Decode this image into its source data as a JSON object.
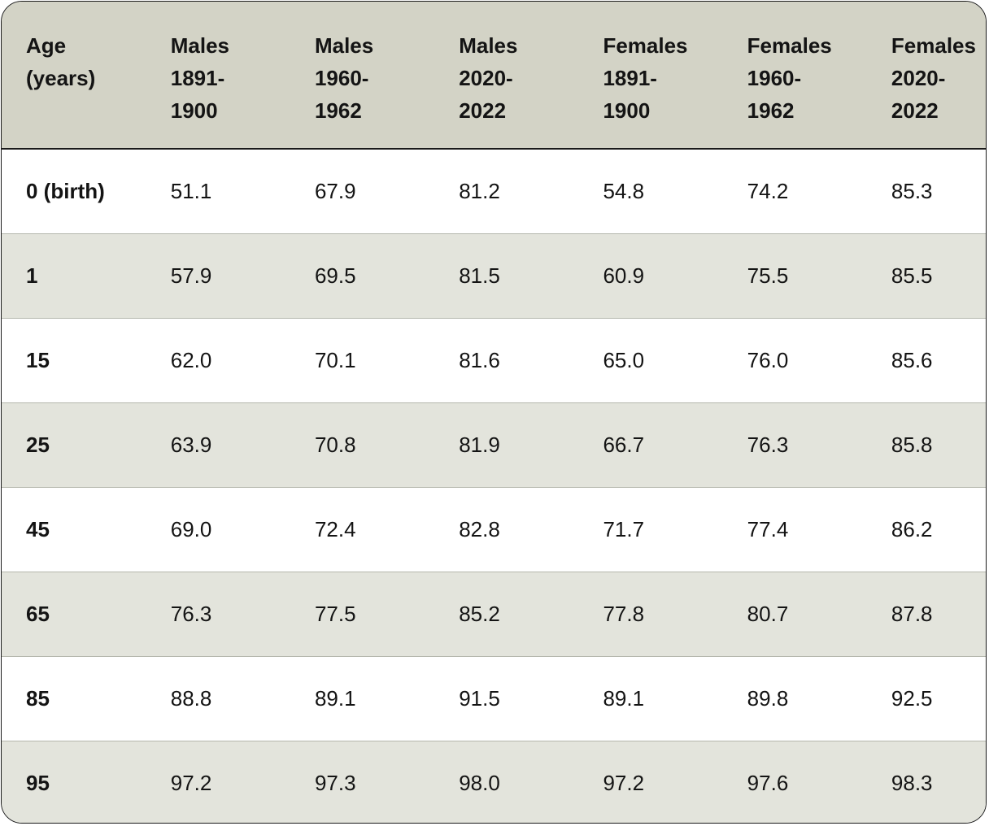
{
  "table": {
    "headers": [
      "Age\n(years)",
      "Males\n1891-\n1900",
      "Males\n1960-\n1962",
      "Males\n2020-\n2022",
      "Females\n1891-\n1900",
      "Females\n1960-\n1962",
      "Females\n2020-\n2022"
    ],
    "rows": [
      [
        "0 (birth)",
        "51.1",
        "67.9",
        "81.2",
        "54.8",
        "74.2",
        "85.3"
      ],
      [
        "1",
        "57.9",
        "69.5",
        "81.5",
        "60.9",
        "75.5",
        "85.5"
      ],
      [
        "15",
        "62.0",
        "70.1",
        "81.6",
        "65.0",
        "76.0",
        "85.6"
      ],
      [
        "25",
        "63.9",
        "70.8",
        "81.9",
        "66.7",
        "76.3",
        "85.8"
      ],
      [
        "45",
        "69.0",
        "72.4",
        "82.8",
        "71.7",
        "77.4",
        "86.2"
      ],
      [
        "65",
        "76.3",
        "77.5",
        "85.2",
        "77.8",
        "80.7",
        "87.8"
      ],
      [
        "85",
        "88.8",
        "89.1",
        "91.5",
        "89.1",
        "89.8",
        "92.5"
      ],
      [
        "95",
        "97.2",
        "97.3",
        "98.0",
        "97.2",
        "97.6",
        "98.3"
      ]
    ]
  },
  "colors": {
    "header_background": "#d3d3c6",
    "striped_row_background": "#e3e4dc",
    "border": "#1a1a1a"
  }
}
